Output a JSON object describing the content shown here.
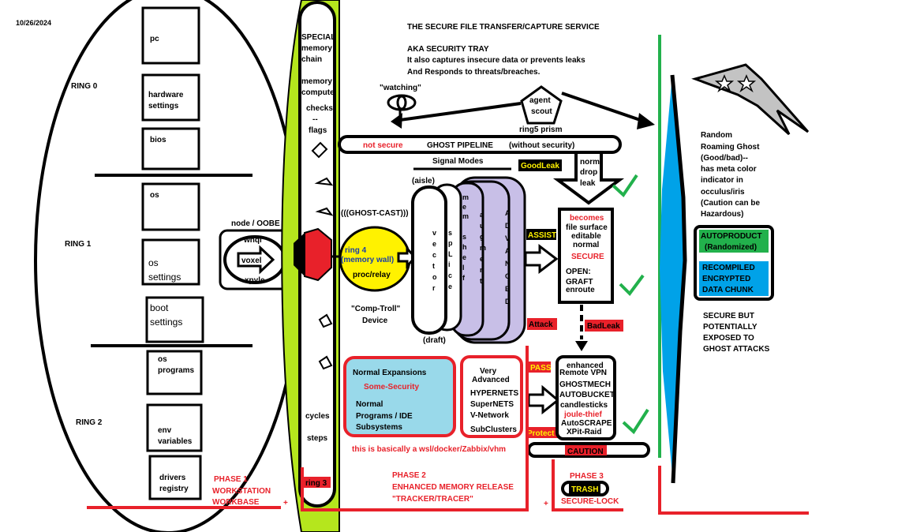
{
  "date": "10/26/2024",
  "title": "THE SECURE FILE TRANSFER/CAPTURE SERVICE",
  "subtitle": {
    "line1": "AKA SECURITY TRAY",
    "line2": "It also captures insecure data or prevents leaks",
    "line3": "And Responds to threats/breaches."
  },
  "rings": {
    "ring0": "RING 0",
    "ring1": "RING 1",
    "ring2": "RING 2"
  },
  "ring_boxes": {
    "pc": [
      "pc"
    ],
    "hardware": [
      "hardware",
      "settings"
    ],
    "bios": [
      "bios"
    ],
    "os": [
      "os"
    ],
    "os_settings": [
      "os",
      "settings"
    ],
    "boot_settings": [
      "boot",
      "settings"
    ],
    "os_programs": [
      "os",
      "programs"
    ],
    "env_variables": [
      "env",
      "variables"
    ],
    "drivers_registry": [
      "drivers",
      "registry"
    ]
  },
  "memory_column": {
    "special": [
      "SPECIAL",
      "memory",
      "chain"
    ],
    "compute": [
      "memory",
      "compute"
    ],
    "checks": [
      "checks",
      "--",
      "flags"
    ],
    "cycles": "cycles",
    "steps": "steps",
    "ring3": "ring 3"
  },
  "node": {
    "title": "node / OOBE",
    "whql": "whql",
    "voxel": "voxel",
    "xpyle": "xpyle"
  },
  "watching": "\"watching\"",
  "agent": [
    "agent",
    "scout"
  ],
  "ring5": "ring5 prism",
  "pipeline": {
    "not_secure": "not secure",
    "label": "GHOST PIPELINE",
    "without": "(without security)"
  },
  "signal_modes": "Signal Modes",
  "good_leak": "GoodLeak",
  "norm_drop_leak": [
    "norm",
    "drop",
    "leak"
  ],
  "ghost_cast": "(((GHOST-CAST)))",
  "ring4": {
    "line1": "ring 4",
    "line2": "(memory wall)",
    "line3": "proc/relay"
  },
  "aisle": "(aisle)",
  "draft": "(draft)",
  "vector": [
    "v",
    "e",
    "c",
    "t",
    "o",
    "r"
  ],
  "splice": [
    "s",
    "p",
    "L",
    "i",
    "c",
    "e"
  ],
  "mem_shelf": [
    "m",
    "e",
    "m",
    "",
    "s",
    "h",
    "e",
    "l",
    "f"
  ],
  "augment": [
    "a",
    "u",
    "g",
    "m",
    "e",
    "n",
    "t"
  ],
  "advanced": [
    "A",
    "D",
    "V",
    "A",
    "N",
    "C",
    "E",
    "D"
  ],
  "assist": "ASSIST",
  "comp_troll": [
    "\"Comp-Troll\"",
    "Device"
  ],
  "becomes": {
    "becomes": "becomes",
    "line2": "file surface",
    "line3": "editable",
    "line4": "normal",
    "secure": "SECURE",
    "open": "OPEN:",
    "graft": "GRAFT",
    "enroute": "enroute"
  },
  "attack": "Attack",
  "bad_leak": "BadLeak",
  "pass": "PASS",
  "protect": "Protect",
  "caution": "CAUTION",
  "enhanced_box": [
    "enhanced",
    "Remote VPN",
    "GHOSTMECH",
    "AUTOBUCKET",
    "candlesticks",
    "joule-thief",
    "AutoSCRAPE",
    "XPit-Raid"
  ],
  "normal_expansions": {
    "title": "Normal Expansions",
    "some_security": "Some-Security",
    "lines": [
      "Normal",
      "Programs / IDE",
      "Subsystems"
    ]
  },
  "very_advanced": [
    "Very",
    "Advanced",
    "HYPERNETS",
    "SuperNETS",
    "V-Network",
    "SubClusters"
  ],
  "wsl_note": "this is basically a wsl/docker/Zabbix/vhm",
  "ghost_desc": [
    "Random",
    "Roaming Ghost",
    "(Good/bad)--",
    "has meta color",
    "indicator in",
    "occulus/iris",
    "(Caution can be",
    "Hazardous)"
  ],
  "autoproduct": [
    "AUTOPRODUCT",
    "(Randomized)"
  ],
  "recompiled": [
    "RECOMPILED",
    "ENCRYPTED",
    "DATA CHUNK"
  ],
  "secure_but": [
    "SECURE BUT",
    "POTENTIALLY",
    "EXPOSED TO",
    "GHOST ATTACKS"
  ],
  "phase1": [
    "PHASE 1",
    "WORKSTATION",
    "WORKBASE"
  ],
  "phase2": [
    "PHASE 2",
    "ENHANCED MEMORY RELEASE",
    "\"TRACKER/TRACER\""
  ],
  "phase3": "PHASE 3",
  "trash": "TRASH",
  "secure_lock": "SECURE-LOCK",
  "plus": "+",
  "colors": {
    "red": "#e8212a",
    "green": "#22b14c",
    "lime": "#b5e61d",
    "blue": "#00a2e8",
    "yellow": "#fff200",
    "lavender": "#c8bfe7",
    "lightblue": "#99d9ea",
    "gray": "#c3c3c3"
  }
}
